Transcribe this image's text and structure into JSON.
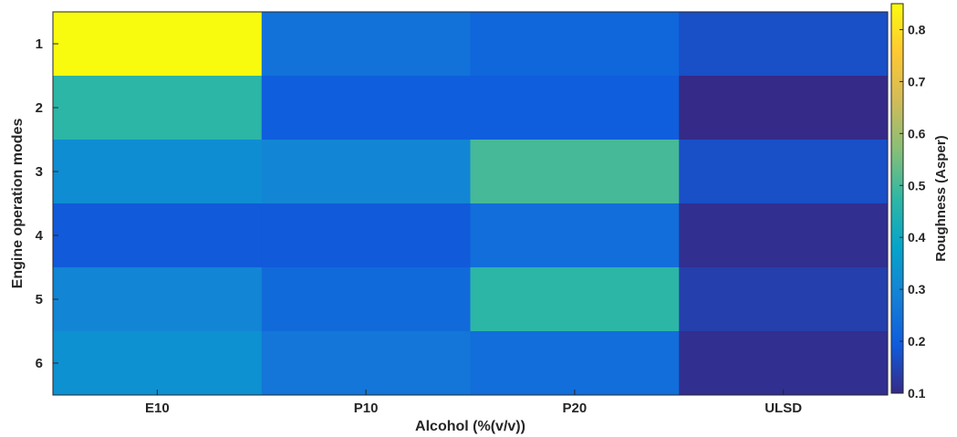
{
  "chart_data": {
    "type": "heatmap",
    "title": "",
    "xlabel": "Alcohol (%(v/v))",
    "ylabel": "Engine operation modes",
    "x_categories": [
      "E10",
      "P10",
      "P20",
      "ULSD"
    ],
    "y_categories": [
      "1",
      "2",
      "3",
      "4",
      "5",
      "6"
    ],
    "values": [
      [
        0.85,
        0.25,
        0.22,
        0.17
      ],
      [
        0.47,
        0.2,
        0.2,
        0.1
      ],
      [
        0.32,
        0.3,
        0.5,
        0.17
      ],
      [
        0.19,
        0.19,
        0.24,
        0.11
      ],
      [
        0.3,
        0.23,
        0.47,
        0.14
      ],
      [
        0.33,
        0.26,
        0.24,
        0.11
      ]
    ],
    "colorbar": {
      "label": "Roughness (Asper)",
      "range": [
        0.1,
        0.85
      ],
      "ticks": [
        "0.1",
        "0.2",
        "0.3",
        "0.4",
        "0.5",
        "0.6",
        "0.7",
        "0.8"
      ],
      "colormap": "parula"
    }
  }
}
